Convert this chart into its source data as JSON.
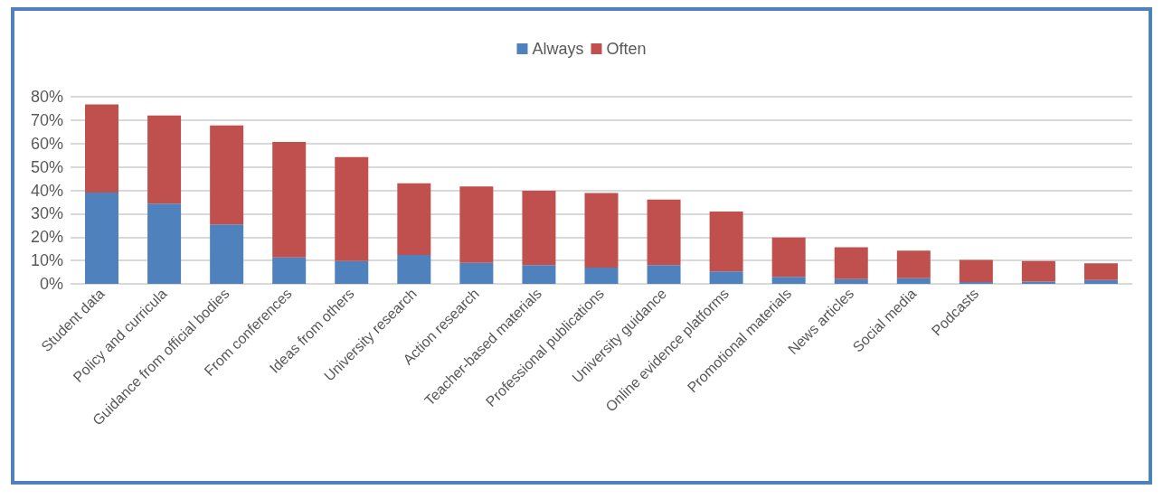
{
  "chart_data": {
    "type": "bar",
    "stacked": true,
    "categories": [
      "Student data",
      "Policy and curricula",
      "Guidance from official bodies",
      "From conferences",
      "Ideas from others",
      "University research",
      "Action research",
      "Teacher-based materials",
      "Professional publications",
      "University guidance",
      "Online evidence platforms",
      "Promotional materials",
      "News articles",
      "Social media",
      "Podcasts",
      null,
      null
    ],
    "series": [
      {
        "name": "Always",
        "color": "#4f81bd",
        "values": [
          39,
          34.3,
          25.4,
          11.3,
          9.8,
          12.4,
          9,
          8,
          7,
          8,
          5.3,
          3,
          2,
          2.4,
          0.8,
          1,
          1.6
        ]
      },
      {
        "name": "Often",
        "color": "#c0504d",
        "values": [
          37.7,
          37.7,
          42.3,
          49.4,
          44.4,
          30.6,
          32.6,
          31.8,
          31.8,
          28,
          25.6,
          16.8,
          13.7,
          11.8,
          9.4,
          8.8,
          7.2
        ]
      }
    ],
    "ylim": [
      0,
      80
    ],
    "yticks": [
      {
        "value": 0,
        "label": "0%"
      },
      {
        "value": 10,
        "label": "10%"
      },
      {
        "value": 20,
        "label": "20%"
      },
      {
        "value": 30,
        "label": "30%"
      },
      {
        "value": 40,
        "label": "40%"
      },
      {
        "value": 50,
        "label": "50%"
      },
      {
        "value": 60,
        "label": "60%"
      },
      {
        "value": 70,
        "label": "70%"
      },
      {
        "value": 80,
        "label": "80%"
      }
    ],
    "grid": "y",
    "legend": "top"
  }
}
